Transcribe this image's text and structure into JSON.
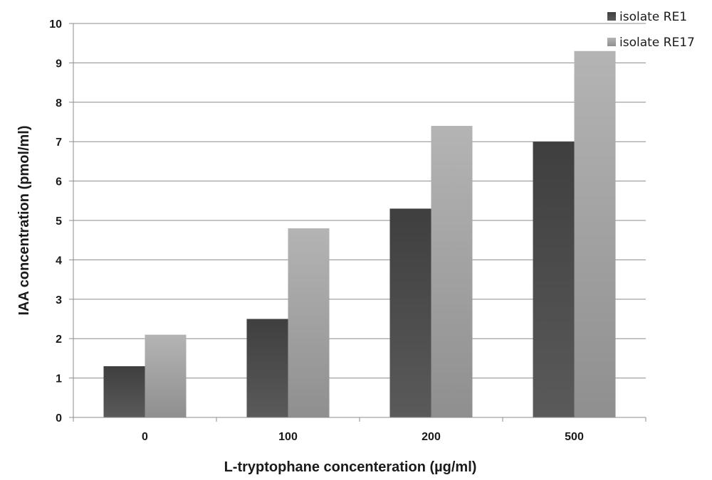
{
  "chart_data": {
    "type": "bar",
    "categories": [
      "0",
      "100",
      "200",
      "500"
    ],
    "series": [
      {
        "name": "isolate RE1",
        "values": [
          1.3,
          2.5,
          5.3,
          7.0
        ],
        "color": "#4a4a4a"
      },
      {
        "name": "isolate RE17",
        "values": [
          2.1,
          4.8,
          7.4,
          9.3
        ],
        "color": "#a8a8a8"
      }
    ],
    "xlabel": "L-tryptophane concenteration (µg/ml)",
    "ylabel": "IAA concentration (pmol/ml)",
    "ylim": [
      0,
      10
    ],
    "yticks": [
      "0",
      "1",
      "2",
      "3",
      "4",
      "5",
      "6",
      "7",
      "8",
      "9",
      "10"
    ],
    "grid": true,
    "legend_position": "top-right"
  }
}
